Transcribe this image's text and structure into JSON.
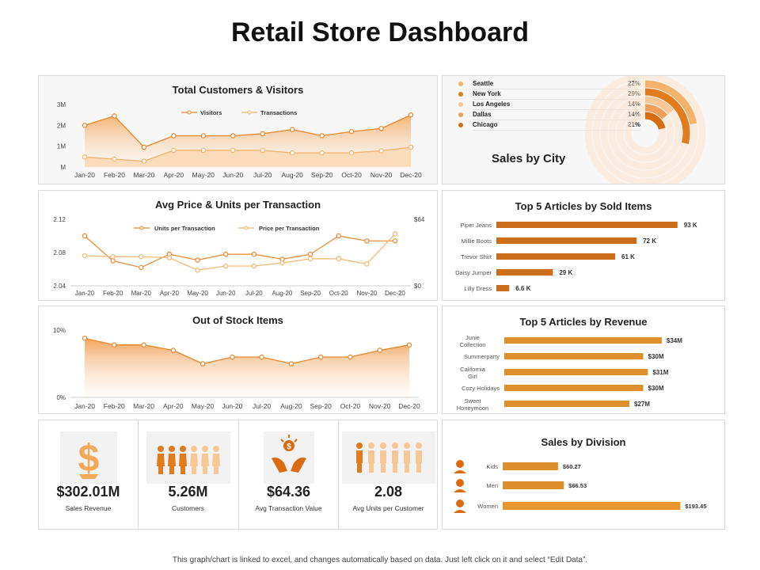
{
  "page": {
    "title": "Retail Store Dashboard",
    "footer": "This graph/chart is linked to excel, and changes automatically based on data. Just left click on it and select “Edit Data”."
  },
  "colors": {
    "accent": "#e8862a",
    "accent_light": "#f4b36b",
    "bar": "#cc6d1c",
    "bar_light": "#dd8f2d",
    "bar_women": "#e8962d"
  },
  "kpis": [
    {
      "value": "$302.01M",
      "label": "Sales Revenue",
      "icon": "dollar-icon"
    },
    {
      "value": "5.26M",
      "label": "Customers",
      "icon": "people-icon"
    },
    {
      "value": "$64.36",
      "label": "Avg Transaction Value",
      "icon": "money-hands-icon"
    },
    {
      "value": "2.08",
      "label": "Avg Units per Customer",
      "icon": "units-people-icon"
    }
  ],
  "sales_by_city": {
    "label": "Sales by City"
  },
  "chart_data": [
    {
      "id": "customers",
      "type": "area",
      "title": "Total Customers & Visitors",
      "categories": [
        "Jan-20",
        "Feb-20",
        "Mar-20",
        "Apr-20",
        "May-20",
        "Jun-20",
        "Jul-20",
        "Aug-20",
        "Sep-20",
        "Oct-20",
        "Nov-20",
        "Dec-20"
      ],
      "series": [
        {
          "name": "Visitors",
          "values": [
            2.0,
            2.45,
            0.95,
            1.5,
            1.5,
            1.5,
            1.6,
            1.8,
            1.5,
            1.7,
            1.85,
            2.5
          ]
        },
        {
          "name": "Transactions",
          "values": [
            0.48,
            0.38,
            0.28,
            0.8,
            0.8,
            0.8,
            0.8,
            0.68,
            0.68,
            0.68,
            0.78,
            0.95
          ]
        }
      ],
      "ylim": [
        0,
        3
      ],
      "yticks": [
        "M",
        "1M",
        "2M",
        "3M"
      ],
      "legend": "top-center"
    },
    {
      "id": "avgprice",
      "type": "line",
      "title": "Avg Price & Units per Transaction",
      "categories": [
        "Jan-20",
        "Feb-20",
        "Mar-20",
        "Apr-20",
        "May-20",
        "Jun-20",
        "Jul-20",
        "Aug-20",
        "Sep-20",
        "Oct-20",
        "Nov-20",
        "Dec-20"
      ],
      "series": [
        {
          "name": "Units per Transaction",
          "axis": "left",
          "values": [
            2.1,
            2.07,
            2.062,
            2.078,
            2.071,
            2.078,
            2.078,
            2.072,
            2.078,
            2.1,
            2.094,
            2.094
          ]
        },
        {
          "name": "Price per Transaction",
          "axis": "right",
          "values": [
            29,
            28,
            28,
            27,
            15,
            19,
            19,
            22,
            26,
            26,
            21,
            50
          ]
        }
      ],
      "ylim_left": [
        2.04,
        2.12
      ],
      "yticks_left": [
        "2.04",
        "2.08",
        "2.12"
      ],
      "ylim_right": [
        0,
        64
      ],
      "yticks_right": [
        "$0",
        "$64"
      ],
      "legend": "top-center"
    },
    {
      "id": "stock",
      "type": "area",
      "title": "Out of Stock Items",
      "categories": [
        "Jan-20",
        "Feb-20",
        "Mar-20",
        "Apr-20",
        "May-20",
        "Jun-20",
        "Jul-20",
        "Aug-20",
        "Sep-20",
        "Oct-20",
        "Nov-20",
        "Dec-20"
      ],
      "series": [
        {
          "name": "",
          "values": [
            8.8,
            7.8,
            7.8,
            7.0,
            5.0,
            6.0,
            6.0,
            5.0,
            6.0,
            6.0,
            7.0,
            7.8
          ]
        }
      ],
      "ylim": [
        0,
        10
      ],
      "yticks": [
        "0%",
        "10%"
      ]
    },
    {
      "id": "sold",
      "type": "bar",
      "orientation": "horizontal",
      "title": "Top 5 Articles by Sold Items",
      "categories": [
        "Piper Jeans",
        "Millie Boots",
        "Trevor Shirt",
        "Daisy Jumper",
        "Lilly Dress"
      ],
      "values": [
        93,
        72,
        61,
        29,
        6.6
      ],
      "labels": [
        "93 K",
        "72 K",
        "61 K",
        "29 K",
        "6.6 K"
      ],
      "xlim": [
        0,
        100
      ]
    },
    {
      "id": "revenue",
      "type": "bar",
      "orientation": "horizontal",
      "title": "Top 5 Articles by Revenue",
      "categories": [
        "Junie Collection",
        "Summerparty",
        "California Girl",
        "Cozy Holidays",
        "Sweet Honeymoon"
      ],
      "values": [
        34,
        30,
        31,
        30,
        27
      ],
      "labels": [
        "$34M",
        "$30M",
        "$31M",
        "$30M",
        "$27M"
      ],
      "xlim": [
        0,
        40
      ]
    },
    {
      "id": "division",
      "type": "bar",
      "orientation": "horizontal",
      "title": "Sales by Division",
      "categories": [
        "Kids",
        "Men",
        "Women"
      ],
      "values": [
        60.27,
        66.53,
        193.45
      ],
      "labels": [
        "$60.27",
        "$66.53",
        "$193.45"
      ],
      "xlim": [
        0,
        200
      ]
    },
    {
      "id": "city",
      "type": "pie",
      "categories": [
        "Seattle",
        "New York",
        "Los Angeles",
        "Dallas",
        "Chicago"
      ],
      "values": [
        22,
        29,
        14,
        14,
        21
      ],
      "labels": [
        "22%",
        "29%",
        "14%",
        "14%",
        "21%"
      ],
      "colors": [
        "#f4b36b",
        "#e07b1e",
        "#f7c896",
        "#f0a05a",
        "#d96c12"
      ]
    }
  ]
}
